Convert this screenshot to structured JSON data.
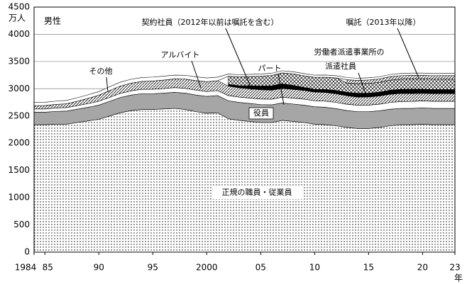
{
  "chart_data": {
    "type": "stacked_area",
    "subtitle": "男性",
    "y_label": "万人",
    "x_label": "年",
    "x": [
      1984,
      1985,
      1986,
      1987,
      1988,
      1989,
      1990,
      1991,
      1992,
      1993,
      1994,
      1995,
      1996,
      1997,
      1998,
      1999,
      2000,
      2001,
      2002,
      2003,
      2004,
      2005,
      2006,
      2007,
      2008,
      2009,
      2010,
      2011,
      2012,
      2013,
      2014,
      2015,
      2016,
      2017,
      2018,
      2019,
      2020,
      2021,
      2022,
      2023
    ],
    "xlim": [
      1984,
      2023
    ],
    "xticks": [
      {
        "value": 1984,
        "label": "1984"
      },
      {
        "value": 1985,
        "label": "85"
      },
      {
        "value": 1990,
        "label": "90"
      },
      {
        "value": 1995,
        "label": "95"
      },
      2000,
      {
        "value": 2005,
        "label": "05"
      },
      {
        "value": 2010,
        "label": "10"
      },
      {
        "value": 2015,
        "label": "15"
      },
      {
        "value": 2020,
        "label": "20"
      },
      {
        "value": 2023,
        "label": "23"
      }
    ],
    "ylim": [
      0,
      4500
    ],
    "yticks": [
      0,
      500,
      1000,
      1500,
      2000,
      2500,
      3000,
      3500,
      4000,
      4500
    ],
    "grid": true,
    "series": [
      {
        "name": "正規の職員・従業員",
        "color": "#ffffff",
        "fill": "dots",
        "values": [
          2340,
          2340,
          2350,
          2350,
          2380,
          2410,
          2440,
          2500,
          2560,
          2600,
          2620,
          2620,
          2630,
          2640,
          2620,
          2580,
          2550,
          2560,
          2450,
          2420,
          2400,
          2380,
          2380,
          2420,
          2400,
          2380,
          2350,
          2340,
          2320,
          2290,
          2270,
          2270,
          2290,
          2320,
          2340,
          2340,
          2350,
          2340,
          2340,
          2340
        ]
      },
      {
        "name": "役員",
        "color": "#a6a6a6",
        "fill": "solid",
        "values": [
          230,
          230,
          235,
          240,
          245,
          250,
          260,
          270,
          280,
          285,
          290,
          290,
          290,
          295,
          300,
          305,
          310,
          315,
          330,
          330,
          330,
          330,
          325,
          320,
          320,
          320,
          320,
          320,
          315,
          310,
          310,
          310,
          305,
          305,
          300,
          300,
          300,
          300,
          300,
          300
        ]
      },
      {
        "name": "パート",
        "color": "#ffffff",
        "fill": "solid",
        "values": [
          60,
          60,
          62,
          64,
          66,
          68,
          70,
          72,
          75,
          78,
          80,
          82,
          84,
          86,
          88,
          90,
          90,
          92,
          95,
          98,
          100,
          102,
          104,
          106,
          108,
          110,
          110,
          112,
          114,
          116,
          118,
          120,
          122,
          124,
          126,
          128,
          128,
          130,
          130,
          130
        ]
      },
      {
        "name": "アルバイト",
        "color": "#ffffff",
        "fill": "hatch",
        "values": [
          60,
          62,
          65,
          70,
          80,
          95,
          110,
          125,
          135,
          140,
          145,
          150,
          155,
          160,
          170,
          175,
          180,
          180,
          175,
          170,
          170,
          170,
          165,
          160,
          160,
          160,
          160,
          160,
          160,
          155,
          150,
          150,
          150,
          150,
          150,
          145,
          140,
          140,
          140,
          140
        ]
      },
      {
        "name": "労働者派遣事業所の派遣社員",
        "color": "#000000",
        "fill": "solid",
        "values": [
          null,
          null,
          null,
          null,
          null,
          null,
          null,
          null,
          null,
          null,
          null,
          null,
          null,
          null,
          null,
          null,
          null,
          null,
          30,
          40,
          55,
          70,
          80,
          85,
          75,
          55,
          50,
          55,
          60,
          65,
          70,
          70,
          70,
          75,
          75,
          80,
          75,
          75,
          75,
          75
        ]
      },
      {
        "name": "契約社員（2012年以前は嘱託を含む）",
        "color": "#ffffff",
        "fill": "crosshatch",
        "values": [
          null,
          null,
          null,
          null,
          null,
          null,
          null,
          null,
          null,
          null,
          null,
          null,
          null,
          null,
          null,
          null,
          null,
          null,
          150,
          160,
          170,
          180,
          190,
          200,
          210,
          215,
          220,
          225,
          230,
          170,
          175,
          180,
          180,
          185,
          185,
          190,
          190,
          190,
          190,
          190
        ]
      },
      {
        "name": "嘱託（2013年以降）",
        "color": "#ffffff",
        "fill": "hatch",
        "values": [
          null,
          null,
          null,
          null,
          null,
          null,
          null,
          null,
          null,
          null,
          null,
          null,
          null,
          null,
          null,
          null,
          null,
          null,
          null,
          null,
          null,
          null,
          null,
          null,
          null,
          null,
          null,
          null,
          null,
          60,
          60,
          62,
          62,
          64,
          64,
          65,
          65,
          65,
          66,
          66
        ]
      },
      {
        "name": "その他",
        "color": "#ffffff",
        "fill": "solid",
        "values": [
          60,
          60,
          60,
          62,
          64,
          66,
          68,
          70,
          72,
          72,
          72,
          72,
          72,
          70,
          70,
          70,
          68,
          66,
          40,
          40,
          40,
          40,
          40,
          40,
          40,
          40,
          40,
          40,
          40,
          40,
          40,
          40,
          40,
          40,
          40,
          40,
          40,
          40,
          40,
          40
        ]
      }
    ]
  }
}
